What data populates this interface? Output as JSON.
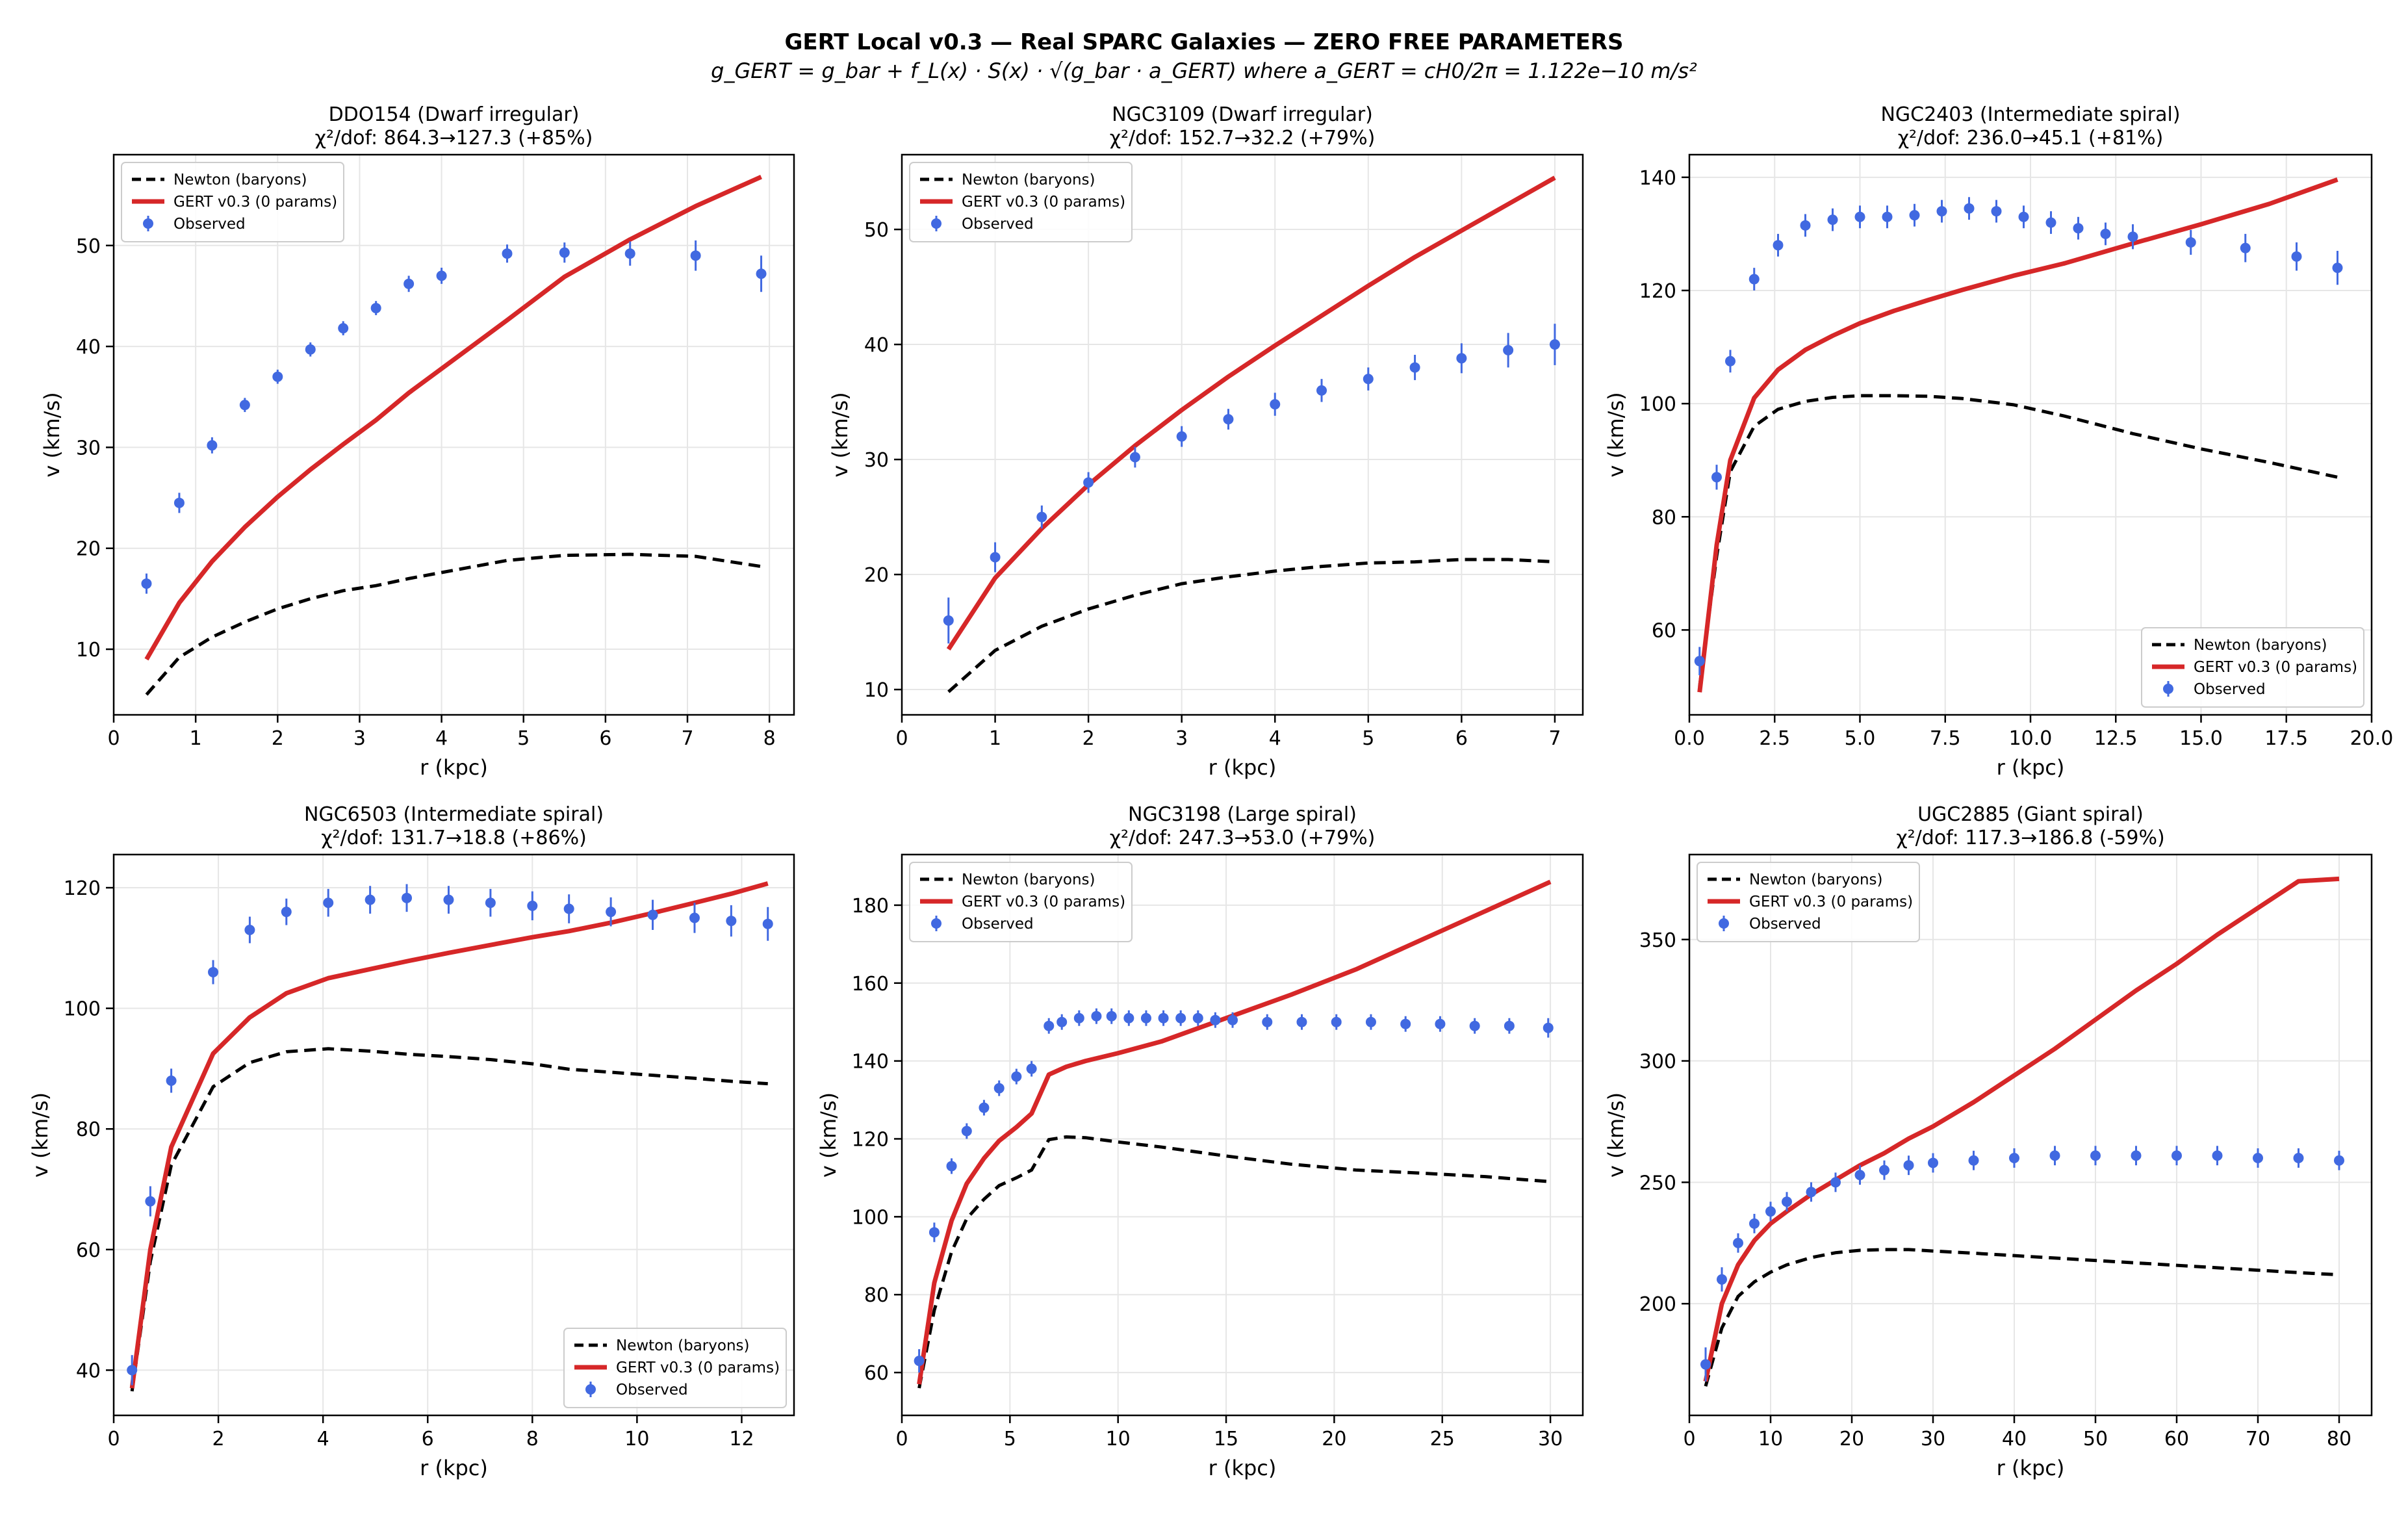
{
  "figure": {
    "title_line1": "GERT Local v0.3 — Real SPARC Galaxies — ZERO FREE PARAMETERS",
    "title_line2_formula": "g_GERT = g_bar + f_L(x) · S(x) · √(g_bar · a_GERT)   where  a_GERT = cH0/2π = 1.122e−10 m/s²"
  },
  "legend_labels": [
    "Newton (baryons)",
    "GERT v0.3 (0 params)",
    "Observed"
  ],
  "colors": {
    "newton": "#000000",
    "gert": "#d62728",
    "observed": "#4169e1",
    "grid": "#e6e6e6"
  },
  "chart_data": [
    {
      "type": "line",
      "title": "DDO154 (Dwarf irregular)",
      "subtitle": "χ²/dof: 864.3→127.3 (+85%)",
      "xlabel": "r (kpc)",
      "ylabel": "v (km/s)",
      "xlim": [
        0,
        8.3
      ],
      "ylim": [
        3.5,
        59
      ],
      "xticks": [
        0,
        1,
        2,
        3,
        4,
        5,
        6,
        7,
        8
      ],
      "xtick_labels": [
        "0",
        "1",
        "2",
        "3",
        "4",
        "5",
        "6",
        "7",
        "8"
      ],
      "yticks": [
        10,
        20,
        30,
        40,
        50
      ],
      "ytick_labels": [
        "10",
        "20",
        "30",
        "40",
        "50"
      ],
      "legend": "upper-left",
      "newton": {
        "x": [
          0.4,
          0.8,
          1.2,
          1.6,
          2.0,
          2.4,
          2.8,
          3.2,
          3.6,
          4.0,
          4.8,
          5.5,
          6.3,
          7.1,
          7.9
        ],
        "y": [
          5.5,
          9.2,
          11.2,
          12.7,
          14.0,
          15.0,
          15.8,
          16.3,
          17.0,
          17.6,
          18.8,
          19.3,
          19.4,
          19.2,
          18.2
        ]
      },
      "gert": {
        "x": [
          0.4,
          0.8,
          1.2,
          1.6,
          2.0,
          2.4,
          2.8,
          3.2,
          3.6,
          4.0,
          4.8,
          5.5,
          6.3,
          7.1,
          7.9
        ],
        "y": [
          9.0,
          14.6,
          18.7,
          22.1,
          25.1,
          27.8,
          30.3,
          32.7,
          35.4,
          37.8,
          42.6,
          46.9,
          50.6,
          53.9,
          56.8
        ]
      },
      "observed": {
        "x": [
          0.4,
          0.8,
          1.2,
          1.6,
          2.0,
          2.4,
          2.8,
          3.2,
          3.6,
          4.0,
          4.8,
          5.5,
          6.3,
          7.1,
          7.9
        ],
        "y": [
          16.5,
          24.5,
          30.2,
          34.2,
          37.0,
          39.7,
          41.8,
          43.8,
          46.2,
          47.0,
          49.2,
          49.3,
          49.2,
          49.0,
          47.2
        ],
        "err": [
          1.0,
          1.0,
          0.8,
          0.7,
          0.7,
          0.7,
          0.7,
          0.7,
          0.8,
          0.8,
          0.9,
          1.0,
          1.2,
          1.5,
          1.8
        ]
      }
    },
    {
      "type": "line",
      "title": "NGC3109 (Dwarf irregular)",
      "subtitle": "χ²/dof: 152.7→32.2 (+79%)",
      "xlabel": "r (kpc)",
      "ylabel": "v (km/s)",
      "xlim": [
        0,
        7.3
      ],
      "ylim": [
        7.8,
        56.5
      ],
      "xticks": [
        0,
        1,
        2,
        3,
        4,
        5,
        6,
        7
      ],
      "xtick_labels": [
        "0",
        "1",
        "2",
        "3",
        "4",
        "5",
        "6",
        "7"
      ],
      "yticks": [
        10,
        20,
        30,
        40,
        50
      ],
      "ytick_labels": [
        "10",
        "20",
        "30",
        "40",
        "50"
      ],
      "legend": "upper-left",
      "newton": {
        "x": [
          0.5,
          1.0,
          1.5,
          2.0,
          2.5,
          3.0,
          3.5,
          4.0,
          4.5,
          5.0,
          5.5,
          6.0,
          6.5,
          7.0
        ],
        "y": [
          9.8,
          13.4,
          15.5,
          17.0,
          18.2,
          19.2,
          19.8,
          20.3,
          20.7,
          21.0,
          21.1,
          21.3,
          21.3,
          21.1
        ]
      },
      "gert": {
        "x": [
          0.5,
          1.0,
          1.5,
          2.0,
          2.5,
          3.0,
          3.5,
          4.0,
          4.5,
          5.0,
          5.5,
          6.0,
          6.5,
          7.0
        ],
        "y": [
          13.5,
          19.7,
          24.0,
          27.8,
          31.2,
          34.3,
          37.2,
          39.9,
          42.5,
          45.1,
          47.6,
          49.9,
          52.2,
          54.5
        ]
      },
      "observed": {
        "x": [
          0.5,
          1.0,
          1.5,
          2.0,
          2.5,
          3.0,
          3.5,
          4.0,
          4.5,
          5.0,
          5.5,
          6.0,
          6.5,
          7.0
        ],
        "y": [
          16.0,
          21.5,
          25.0,
          28.0,
          30.2,
          32.0,
          33.5,
          34.8,
          36.0,
          37.0,
          38.0,
          38.8,
          39.5,
          40.0
        ],
        "err": [
          2.0,
          1.3,
          1.0,
          0.9,
          0.9,
          0.9,
          0.9,
          1.0,
          1.0,
          1.0,
          1.1,
          1.3,
          1.5,
          1.8
        ]
      }
    },
    {
      "type": "line",
      "title": "NGC2403 (Intermediate spiral)",
      "subtitle": "χ²/dof: 236.0→45.1 (+81%)",
      "xlabel": "r (kpc)",
      "ylabel": "v (km/s)",
      "xlim": [
        0,
        20
      ],
      "ylim": [
        45,
        144
      ],
      "xticks": [
        0,
        2.5,
        5,
        7.5,
        10,
        12.5,
        15,
        17.5,
        20
      ],
      "xtick_labels": [
        "0.0",
        "2.5",
        "5.0",
        "7.5",
        "10.0",
        "12.5",
        "15.0",
        "17.5",
        "20.0"
      ],
      "yticks": [
        60,
        80,
        100,
        120,
        140
      ],
      "ytick_labels": [
        "60",
        "80",
        "100",
        "120",
        "140"
      ],
      "legend": "lower-right",
      "newton": {
        "x": [
          0.3,
          0.8,
          1.2,
          1.9,
          2.6,
          3.4,
          4.2,
          5.0,
          6.0,
          7.0,
          8.0,
          9.5,
          11.0,
          13.0,
          15.0,
          17.0,
          19.0
        ],
        "y": [
          50,
          73,
          88,
          96,
          99,
          100.4,
          101.1,
          101.4,
          101.4,
          101.3,
          100.9,
          99.8,
          97.8,
          94.7,
          92.0,
          89.6,
          87.0
        ]
      },
      "gert": {
        "x": [
          0.3,
          0.8,
          1.2,
          1.9,
          2.6,
          3.4,
          4.2,
          5.0,
          6.0,
          7.0,
          8.0,
          9.5,
          11.0,
          13.0,
          15.0,
          17.0,
          19.0
        ],
        "y": [
          49,
          75,
          90,
          101,
          106,
          109.5,
          112,
          114.2,
          116.4,
          118.3,
          120.1,
          122.6,
          124.8,
          128.3,
          131.7,
          135.3,
          139.6
        ]
      },
      "observed": {
        "x": [
          0.3,
          0.8,
          1.2,
          1.9,
          2.6,
          3.4,
          4.2,
          5.0,
          5.8,
          6.6,
          7.4,
          8.2,
          9.0,
          9.8,
          10.6,
          11.4,
          12.2,
          13.0,
          14.7,
          16.3,
          17.8,
          19.0
        ],
        "y": [
          54.5,
          87,
          107.5,
          122,
          128,
          131.5,
          132.5,
          133,
          133,
          133.3,
          134,
          134.5,
          134,
          133,
          132,
          131,
          130,
          129.5,
          128.5,
          127.5,
          126,
          124
        ],
        "err": [
          2.5,
          2.2,
          2.0,
          2.0,
          2.0,
          2.0,
          2.0,
          2.0,
          2.0,
          2.0,
          2.0,
          2.0,
          2.0,
          2.0,
          2.0,
          2.0,
          2.0,
          2.2,
          2.2,
          2.5,
          2.5,
          3.0
        ]
      }
    },
    {
      "type": "line",
      "title": "NGC6503 (Intermediate spiral)",
      "subtitle": "χ²/dof: 131.7→18.8 (+86%)",
      "xlabel": "r (kpc)",
      "ylabel": "v (km/s)",
      "xlim": [
        0,
        13
      ],
      "ylim": [
        32.5,
        125.5
      ],
      "xticks": [
        0,
        2,
        4,
        6,
        8,
        10,
        12
      ],
      "xtick_labels": [
        "0",
        "2",
        "4",
        "6",
        "8",
        "10",
        "12"
      ],
      "yticks": [
        40,
        60,
        80,
        100,
        120
      ],
      "ytick_labels": [
        "40",
        "60",
        "80",
        "100",
        "120"
      ],
      "legend": "lower-right",
      "newton": {
        "x": [
          0.35,
          0.7,
          1.1,
          1.9,
          2.6,
          3.3,
          4.1,
          4.9,
          5.6,
          6.4,
          7.2,
          8.0,
          8.7,
          9.5,
          10.3,
          11.1,
          11.8,
          12.5
        ],
        "y": [
          36.5,
          58,
          74,
          87,
          91,
          92.8,
          93.3,
          92.9,
          92.4,
          92.0,
          91.5,
          90.8,
          89.9,
          89.4,
          88.9,
          88.4,
          87.9,
          87.5
        ]
      },
      "gert": {
        "x": [
          0.35,
          0.7,
          1.1,
          1.9,
          2.6,
          3.3,
          4.1,
          4.9,
          5.6,
          6.4,
          7.2,
          8.0,
          8.7,
          9.5,
          10.3,
          11.1,
          11.8,
          12.5
        ],
        "y": [
          37,
          60,
          77,
          92.5,
          98.5,
          102.5,
          105,
          106.5,
          107.8,
          109.2,
          110.5,
          111.8,
          112.8,
          114.2,
          115.8,
          117.5,
          119.0,
          120.7
        ]
      },
      "observed": {
        "x": [
          0.35,
          0.7,
          1.1,
          1.9,
          2.6,
          3.3,
          4.1,
          4.9,
          5.6,
          6.4,
          7.2,
          8.0,
          8.7,
          9.5,
          10.3,
          11.1,
          11.8,
          12.5
        ],
        "y": [
          40,
          68,
          88,
          106,
          113,
          116,
          117.5,
          118,
          118.3,
          118,
          117.5,
          117,
          116.5,
          116,
          115.5,
          115,
          114.5,
          114
        ],
        "err": [
          2.5,
          2.5,
          2.0,
          2.0,
          2.2,
          2.2,
          2.3,
          2.3,
          2.3,
          2.3,
          2.3,
          2.4,
          2.4,
          2.4,
          2.5,
          2.5,
          2.6,
          2.8
        ]
      }
    },
    {
      "type": "line",
      "title": "NGC3198 (Large spiral)",
      "subtitle": "χ²/dof: 247.3→53.0 (+79%)",
      "xlabel": "r (kpc)",
      "ylabel": "v (km/s)",
      "xlim": [
        0,
        31.5
      ],
      "ylim": [
        49,
        193
      ],
      "xticks": [
        0,
        5,
        10,
        15,
        20,
        25,
        30
      ],
      "xtick_labels": [
        "0",
        "5",
        "10",
        "15",
        "20",
        "25",
        "30"
      ],
      "yticks": [
        60,
        80,
        100,
        120,
        140,
        160,
        180
      ],
      "ytick_labels": [
        "60",
        "80",
        "100",
        "120",
        "140",
        "160",
        "180"
      ],
      "legend": "upper-left",
      "newton": {
        "x": [
          0.8,
          1.5,
          2.3,
          3.0,
          3.8,
          4.5,
          5.3,
          6.0,
          6.8,
          7.6,
          8.5,
          10.0,
          12.0,
          15.0,
          18.0,
          21.0,
          24.0,
          27.0,
          30.0
        ],
        "y": [
          56,
          76,
          91,
          99.5,
          104.5,
          108,
          110,
          112,
          119.8,
          120.5,
          120.3,
          119.2,
          117.9,
          115.6,
          113.5,
          112,
          111.2,
          110.3,
          109
        ]
      },
      "gert": {
        "x": [
          0.8,
          1.5,
          2.3,
          3.0,
          3.8,
          4.5,
          5.3,
          6.0,
          6.8,
          7.6,
          8.5,
          10.0,
          12.0,
          15.0,
          18.0,
          21.0,
          24.0,
          27.0,
          30.0
        ],
        "y": [
          57,
          83,
          99,
          108.5,
          115,
          119.5,
          123,
          126.5,
          136.5,
          138.5,
          140,
          142,
          145,
          151,
          157,
          163.5,
          171,
          178.5,
          186
        ]
      },
      "observed": {
        "x": [
          0.8,
          1.5,
          2.3,
          3.0,
          3.8,
          4.5,
          5.3,
          6.0,
          6.8,
          7.4,
          8.2,
          9.0,
          9.7,
          10.5,
          11.3,
          12.1,
          12.9,
          13.7,
          14.5,
          15.3,
          16.9,
          18.5,
          20.1,
          21.7,
          23.3,
          24.9,
          26.5,
          28.1,
          29.9
        ],
        "y": [
          63,
          96,
          113,
          122,
          128,
          133,
          136,
          138,
          149,
          150,
          151,
          151.5,
          151.5,
          151,
          151,
          151,
          151,
          151,
          150.5,
          150.5,
          150,
          150,
          150,
          150,
          149.5,
          149.5,
          149,
          149,
          148.5
        ],
        "err": [
          3.0,
          2.5,
          2.0,
          2.0,
          2.0,
          2.0,
          2.0,
          2.0,
          2.0,
          2.0,
          2.0,
          2.0,
          2.0,
          2.0,
          2.0,
          2.0,
          2.0,
          2.0,
          2.0,
          2.0,
          2.0,
          2.0,
          2.0,
          2.0,
          2.0,
          2.0,
          2.0,
          2.0,
          2.5
        ]
      }
    },
    {
      "type": "line",
      "title": "UGC2885 (Giant spiral)",
      "subtitle": "χ²/dof: 117.3→186.8 (-59%)",
      "xlabel": "r (kpc)",
      "ylabel": "v (km/s)",
      "xlim": [
        0,
        84
      ],
      "ylim": [
        154,
        385
      ],
      "xticks": [
        0,
        10,
        20,
        30,
        40,
        50,
        60,
        70,
        80
      ],
      "xtick_labels": [
        "0",
        "10",
        "20",
        "30",
        "40",
        "50",
        "60",
        "70",
        "80"
      ],
      "yticks": [
        200,
        250,
        300,
        350
      ],
      "ytick_labels": [
        "200",
        "250",
        "300",
        "350"
      ],
      "legend": "upper-left",
      "newton": {
        "x": [
          2,
          4,
          6,
          8,
          10,
          12,
          15,
          18,
          21,
          24,
          27,
          30,
          35,
          40,
          45,
          50,
          55,
          60,
          65,
          70,
          75,
          80
        ],
        "y": [
          166,
          190,
          203,
          209,
          213,
          216,
          219,
          221,
          222,
          222.3,
          222.3,
          221.7,
          220.8,
          219.8,
          218.8,
          217.8,
          216.8,
          215.8,
          214.8,
          213.8,
          212.8,
          211.9
        ]
      },
      "gert": {
        "x": [
          2,
          4,
          6,
          8,
          10,
          12,
          15,
          18,
          21,
          24,
          27,
          30,
          35,
          40,
          45,
          50,
          55,
          60,
          65,
          70,
          75,
          80
        ],
        "y": [
          168,
          200,
          216,
          226,
          233,
          238,
          245,
          251,
          257,
          262,
          268,
          273,
          283,
          294,
          305,
          317,
          329,
          340,
          352,
          363,
          374,
          375
        ]
      },
      "observed": {
        "x": [
          2,
          4,
          6,
          8,
          10,
          12,
          15,
          18,
          21,
          24,
          27,
          30,
          35,
          40,
          45,
          50,
          55,
          60,
          65,
          70,
          75,
          80
        ],
        "y": [
          175,
          210,
          225,
          233,
          238,
          242,
          246,
          250,
          253,
          255,
          257,
          258,
          259,
          260,
          261,
          261,
          261,
          261,
          261,
          260,
          260,
          259
        ],
        "err": [
          7,
          5,
          4,
          4,
          4,
          4,
          4,
          4,
          4,
          4,
          4,
          4,
          4,
          4,
          4,
          4,
          4,
          4,
          4,
          4,
          4,
          4
        ]
      }
    }
  ]
}
